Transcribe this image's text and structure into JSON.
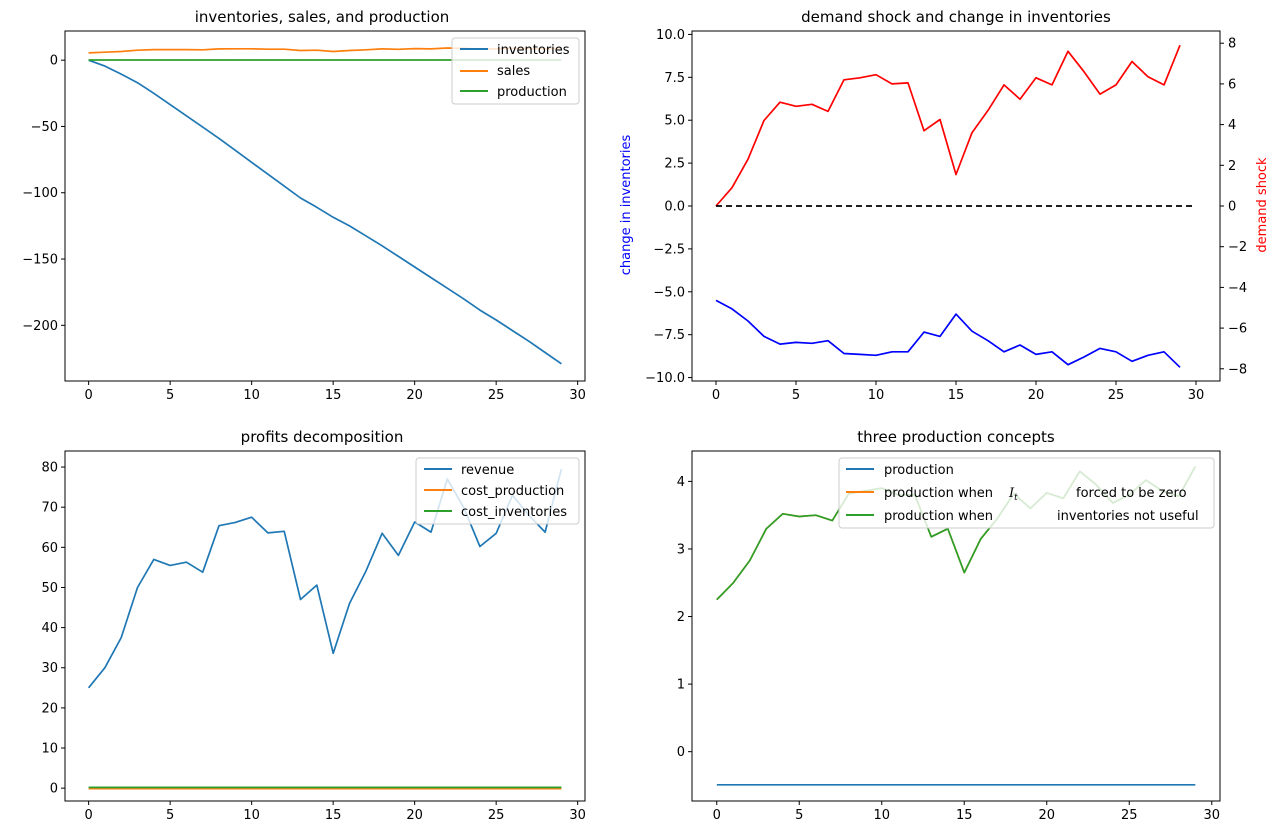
{
  "chart_data": [
    {
      "type": "line",
      "title": "inventories, sales, and production",
      "xlabel": "",
      "ylabel": "",
      "xlim": [
        -1.45,
        30.45
      ],
      "ylim": [
        -242,
        22
      ],
      "xticks": [
        0,
        5,
        10,
        15,
        20,
        25,
        30
      ],
      "yticks": [
        0,
        -50,
        -100,
        -150,
        -200
      ],
      "xticklabels": [
        "0",
        "5",
        "10",
        "15",
        "20",
        "25",
        "30"
      ],
      "yticklabels": [
        "0",
        "−50",
        "−100",
        "−150",
        "−200"
      ],
      "legend": "top-right",
      "series": [
        {
          "name": "inventories",
          "color": "#1f77b4",
          "x": [
            0,
            1,
            2,
            3,
            4,
            5,
            6,
            7,
            8,
            9,
            10,
            11,
            12,
            13,
            14,
            15,
            16,
            17,
            18,
            19,
            20,
            21,
            22,
            23,
            24,
            25,
            26,
            27,
            28,
            29
          ],
          "y": [
            0,
            -4.5,
            -10.5,
            -17,
            -25,
            -33.5,
            -42,
            -50.5,
            -59,
            -68,
            -77,
            -86,
            -95,
            -104,
            -111,
            -118.5,
            -125,
            -132.5,
            -140,
            -148,
            -156,
            -164,
            -172,
            -180,
            -188.5,
            -196,
            -204,
            -212,
            -220.5,
            -229
          ]
        },
        {
          "name": "sales",
          "color": "#ff7f0e",
          "x": [
            0,
            1,
            2,
            3,
            4,
            5,
            6,
            7,
            8,
            9,
            10,
            11,
            12,
            13,
            14,
            15,
            16,
            17,
            18,
            19,
            20,
            21,
            22,
            23,
            24,
            25,
            26,
            27,
            28,
            29
          ],
          "y": [
            5.5,
            6,
            6.5,
            7.5,
            8,
            8,
            8,
            7.8,
            8.5,
            8.6,
            8.6,
            8.3,
            8.3,
            7.3,
            7.5,
            6.5,
            7.3,
            7.8,
            8.5,
            8.2,
            8.7,
            8.5,
            9.2,
            8.9,
            8.3,
            8.5,
            9,
            8.8,
            8.6,
            9.1
          ]
        },
        {
          "name": "production",
          "color": "#2ca02c",
          "x": [
            0,
            1,
            2,
            3,
            4,
            5,
            6,
            7,
            8,
            9,
            10,
            11,
            12,
            13,
            14,
            15,
            16,
            17,
            18,
            19,
            20,
            21,
            22,
            23,
            24,
            25,
            26,
            27,
            28,
            29
          ],
          "y": [
            0.1,
            0.1,
            0.1,
            0.1,
            0.1,
            0.1,
            0.1,
            0.1,
            0.1,
            0.1,
            0.1,
            0.1,
            0.1,
            0.1,
            0.1,
            0.1,
            0.1,
            0.1,
            0.1,
            0.1,
            0.1,
            0.1,
            0.1,
            0.1,
            0.1,
            0.1,
            0.1,
            0.1,
            0.1,
            0.1
          ]
        }
      ]
    },
    {
      "type": "line",
      "title": "demand shock and change in inventories",
      "ylabel": "change in inventories",
      "ylabel_color": "#0000ff",
      "y2label": "demand shock",
      "y2label_color": "#ff0000",
      "xlim": [
        -1.5,
        31.5
      ],
      "ylim": [
        -10.2,
        10.2
      ],
      "y2lim": [
        -8.6,
        8.6
      ],
      "xticks": [
        0,
        5,
        10,
        15,
        20,
        25,
        30
      ],
      "yticks": [
        10,
        7.5,
        5,
        2.5,
        0,
        -2.5,
        -5,
        -7.5,
        -10
      ],
      "y2ticks": [
        8,
        6,
        4,
        2,
        0,
        -2,
        -4,
        -6,
        -8
      ],
      "xticklabels": [
        "0",
        "5",
        "10",
        "15",
        "20",
        "25",
        "30"
      ],
      "yticklabels": [
        "10.0",
        "7.5",
        "5.0",
        "2.5",
        "0.0",
        "−2.5",
        "−5.0",
        "−7.5",
        "−10.0"
      ],
      "y2ticklabels": [
        "8",
        "6",
        "4",
        "2",
        "0",
        "−2",
        "−4",
        "−6",
        "−8"
      ],
      "series": [
        {
          "name": "",
          "axis": "left",
          "color": "#0000ff",
          "x": [
            0,
            1,
            2,
            3,
            4,
            5,
            6,
            7,
            8,
            9,
            10,
            11,
            12,
            13,
            14,
            15,
            16,
            17,
            18,
            19,
            20,
            21,
            22,
            23,
            24,
            25,
            26,
            27,
            28,
            29
          ],
          "y": [
            -5.5,
            -6,
            -6.7,
            -7.6,
            -8.05,
            -7.95,
            -8,
            -7.85,
            -8.6,
            -8.65,
            -8.7,
            -8.5,
            -8.5,
            -7.35,
            -7.6,
            -6.3,
            -7.3,
            -7.85,
            -8.5,
            -8.1,
            -8.65,
            -8.5,
            -9.25,
            -8.8,
            -8.3,
            -8.5,
            -9.05,
            -8.7,
            -8.5,
            -9.4
          ]
        },
        {
          "name": "",
          "axis": "right",
          "color": "#ff0000",
          "x": [
            0,
            1,
            2,
            3,
            4,
            5,
            6,
            7,
            8,
            9,
            10,
            11,
            12,
            13,
            14,
            15,
            16,
            17,
            18,
            19,
            20,
            21,
            22,
            23,
            24,
            25,
            26,
            27,
            28,
            29
          ],
          "y": [
            0,
            0.9,
            2.3,
            4.2,
            5.1,
            4.9,
            5,
            4.65,
            6.2,
            6.3,
            6.45,
            6,
            6.05,
            3.7,
            4.25,
            1.55,
            3.6,
            4.7,
            5.95,
            5.25,
            6.3,
            5.95,
            7.6,
            6.6,
            5.5,
            5.95,
            7.1,
            6.35,
            5.95,
            7.9
          ]
        },
        {
          "name": "",
          "axis": "left",
          "color": "#000000",
          "dashed": true,
          "x": [
            0,
            30
          ],
          "y": [
            0,
            0
          ]
        }
      ]
    },
    {
      "type": "line",
      "title": "profits decomposition",
      "xlabel": "",
      "ylabel": "",
      "xlim": [
        -1.45,
        30.45
      ],
      "ylim": [
        -3.2,
        84
      ],
      "xticks": [
        0,
        5,
        10,
        15,
        20,
        25,
        30
      ],
      "yticks": [
        0,
        10,
        20,
        30,
        40,
        50,
        60,
        70,
        80
      ],
      "xticklabels": [
        "0",
        "5",
        "10",
        "15",
        "20",
        "25",
        "30"
      ],
      "yticklabels": [
        "0",
        "10",
        "20",
        "30",
        "40",
        "50",
        "60",
        "70",
        "80"
      ],
      "legend": "top-right",
      "series": [
        {
          "name": "revenue",
          "color": "#1f77b4",
          "x": [
            0,
            1,
            2,
            3,
            4,
            5,
            6,
            7,
            8,
            9,
            10,
            11,
            12,
            13,
            14,
            15,
            16,
            17,
            18,
            19,
            20,
            21,
            22,
            23,
            24,
            25,
            26,
            27,
            28,
            29
          ],
          "y": [
            25,
            30,
            37.5,
            50,
            57,
            55.5,
            56.3,
            53.8,
            65.4,
            66.2,
            67.5,
            63.6,
            64,
            47,
            50.6,
            33.6,
            46,
            54,
            63.5,
            58,
            66.3,
            63.8,
            77,
            70,
            60.2,
            63.5,
            73,
            68,
            63.8,
            79.5
          ]
        },
        {
          "name": "cost_production",
          "color": "#ff7f0e",
          "x": [
            0,
            1,
            2,
            3,
            4,
            5,
            6,
            7,
            8,
            9,
            10,
            11,
            12,
            13,
            14,
            15,
            16,
            17,
            18,
            19,
            20,
            21,
            22,
            23,
            24,
            25,
            26,
            27,
            28,
            29
          ],
          "y": [
            -0.1,
            -0.1,
            -0.1,
            -0.1,
            -0.1,
            -0.1,
            -0.1,
            -0.1,
            -0.1,
            -0.1,
            -0.1,
            -0.1,
            -0.1,
            -0.1,
            -0.1,
            -0.1,
            -0.1,
            -0.1,
            -0.1,
            -0.1,
            -0.1,
            -0.1,
            -0.1,
            -0.1,
            -0.1,
            -0.1,
            -0.1,
            -0.1,
            -0.1,
            -0.1
          ]
        },
        {
          "name": "cost_inventories",
          "color": "#2ca02c",
          "x": [
            0,
            1,
            2,
            3,
            4,
            5,
            6,
            7,
            8,
            9,
            10,
            11,
            12,
            13,
            14,
            15,
            16,
            17,
            18,
            19,
            20,
            21,
            22,
            23,
            24,
            25,
            26,
            27,
            28,
            29
          ],
          "y": [
            0.2,
            0.2,
            0.2,
            0.2,
            0.2,
            0.2,
            0.2,
            0.2,
            0.2,
            0.2,
            0.2,
            0.2,
            0.2,
            0.2,
            0.2,
            0.2,
            0.2,
            0.2,
            0.2,
            0.2,
            0.2,
            0.2,
            0.2,
            0.2,
            0.2,
            0.2,
            0.2,
            0.2,
            0.2,
            0.2
          ]
        }
      ]
    },
    {
      "type": "line",
      "title": "three production concepts",
      "xlabel": "",
      "ylabel": "",
      "xlim": [
        -1.5,
        30.5
      ],
      "ylim": [
        -0.73,
        4.45
      ],
      "xticks": [
        0,
        5,
        10,
        15,
        20,
        25,
        30
      ],
      "yticks": [
        0,
        1,
        2,
        3,
        4
      ],
      "xticklabels": [
        "0",
        "5",
        "10",
        "15",
        "20",
        "25",
        "30"
      ],
      "yticklabels": [
        "0",
        "1",
        "2",
        "3",
        "4"
      ],
      "legend": "top-right",
      "legend_math_symbol": "I",
      "legend_math_subscript": "t",
      "series": [
        {
          "name": "production",
          "color": "#1f77b4",
          "x": [
            0,
            29
          ],
          "y": [
            -0.49,
            -0.49
          ]
        },
        {
          "name": "production when",
          "name_suffix": "forced to be zero",
          "color": "#ff7f0e",
          "x": [
            0,
            1,
            2,
            3,
            4,
            5,
            6,
            7,
            8,
            9,
            10,
            11,
            12,
            13,
            14,
            15,
            16,
            17,
            18,
            19,
            20,
            21,
            22,
            23,
            24,
            25,
            26,
            27,
            28,
            29
          ],
          "y": [
            2.25,
            2.5,
            2.83,
            3.3,
            3.52,
            3.48,
            3.5,
            3.42,
            3.82,
            3.86,
            3.9,
            3.8,
            3.8,
            3.18,
            3.3,
            2.65,
            3.15,
            3.45,
            3.82,
            3.6,
            3.83,
            3.75,
            4.15,
            3.95,
            3.68,
            3.8,
            4.02,
            3.86,
            3.78,
            4.22
          ]
        },
        {
          "name": "production when",
          "name_suffix": "inventories not useful",
          "color": "#2ca02c",
          "x": [
            0,
            1,
            2,
            3,
            4,
            5,
            6,
            7,
            8,
            9,
            10,
            11,
            12,
            13,
            14,
            15,
            16,
            17,
            18,
            19,
            20,
            21,
            22,
            23,
            24,
            25,
            26,
            27,
            28,
            29
          ],
          "y": [
            2.25,
            2.5,
            2.83,
            3.3,
            3.52,
            3.48,
            3.5,
            3.42,
            3.82,
            3.86,
            3.9,
            3.8,
            3.8,
            3.18,
            3.3,
            2.65,
            3.15,
            3.45,
            3.82,
            3.6,
            3.83,
            3.75,
            4.15,
            3.95,
            3.68,
            3.8,
            4.02,
            3.86,
            3.78,
            4.22
          ]
        }
      ]
    }
  ]
}
